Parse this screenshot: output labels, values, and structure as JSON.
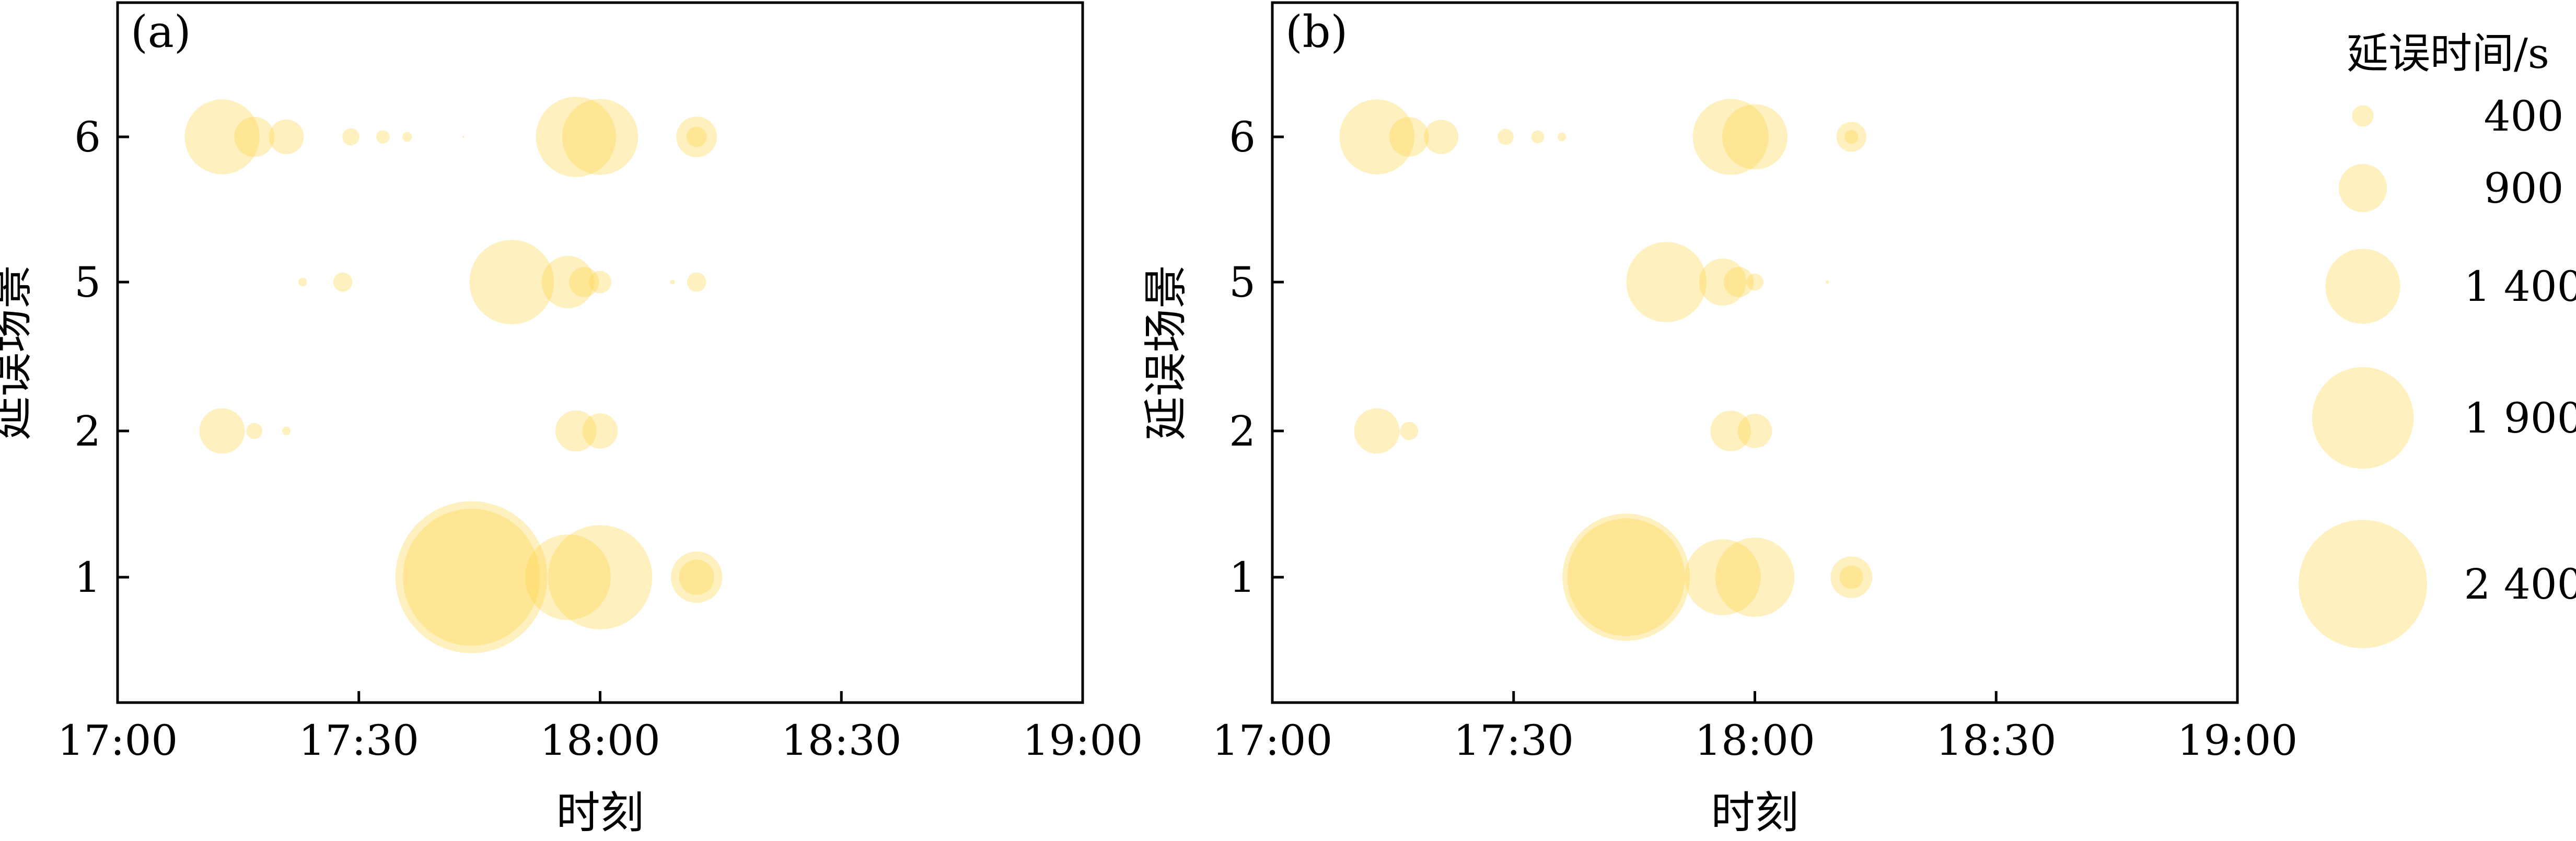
{
  "bubble_color": "#FFD23C",
  "chart_data": [
    {
      "type": "scatter",
      "panel_label": "(a)",
      "xlabel": "时刻",
      "ylabel": "延误场景",
      "xlim": [
        "17:00",
        "19:00"
      ],
      "xticks": [
        "17:00",
        "17:30",
        "18:00",
        "18:30",
        "19:00"
      ],
      "yticks": [
        "1",
        "2",
        "5",
        "6"
      ],
      "points": [
        {
          "time": "17:13",
          "scenario": "6",
          "delay": 1400
        },
        {
          "time": "17:17",
          "scenario": "6",
          "delay": 750
        },
        {
          "time": "17:21",
          "scenario": "6",
          "delay": 650
        },
        {
          "time": "17:29",
          "scenario": "6",
          "delay": 320
        },
        {
          "time": "17:33",
          "scenario": "6",
          "delay": 250
        },
        {
          "time": "17:36",
          "scenario": "6",
          "delay": 180
        },
        {
          "time": "17:43",
          "scenario": "6",
          "delay": 40
        },
        {
          "time": "17:57",
          "scenario": "6",
          "delay": 1500
        },
        {
          "time": "18:00",
          "scenario": "6",
          "delay": 1420
        },
        {
          "time": "18:12",
          "scenario": "6",
          "delay": 760
        },
        {
          "time": "18:12",
          "scenario": "6",
          "delay": 380
        },
        {
          "time": "17:23",
          "scenario": "5",
          "delay": 160
        },
        {
          "time": "17:28",
          "scenario": "5",
          "delay": 360
        },
        {
          "time": "17:49",
          "scenario": "5",
          "delay": 1580
        },
        {
          "time": "17:56",
          "scenario": "5",
          "delay": 980
        },
        {
          "time": "17:58",
          "scenario": "5",
          "delay": 560
        },
        {
          "time": "18:00",
          "scenario": "5",
          "delay": 420
        },
        {
          "time": "18:09",
          "scenario": "5",
          "delay": 90
        },
        {
          "time": "18:12",
          "scenario": "5",
          "delay": 360
        },
        {
          "time": "17:13",
          "scenario": "2",
          "delay": 850
        },
        {
          "time": "17:17",
          "scenario": "2",
          "delay": 300
        },
        {
          "time": "17:21",
          "scenario": "2",
          "delay": 160
        },
        {
          "time": "17:57",
          "scenario": "2",
          "delay": 770
        },
        {
          "time": "18:00",
          "scenario": "2",
          "delay": 660
        },
        {
          "time": "17:44",
          "scenario": "1",
          "delay": 2840
        },
        {
          "time": "17:44",
          "scenario": "1",
          "delay": 2560
        },
        {
          "time": "17:56",
          "scenario": "1",
          "delay": 1600
        },
        {
          "time": "18:00",
          "scenario": "1",
          "delay": 1950
        },
        {
          "time": "18:12",
          "scenario": "1",
          "delay": 960
        },
        {
          "time": "18:12",
          "scenario": "1",
          "delay": 660
        }
      ]
    },
    {
      "type": "scatter",
      "panel_label": "(b)",
      "xlabel": "时刻",
      "ylabel": "延误场景",
      "xlim": [
        "17:00",
        "19:00"
      ],
      "xticks": [
        "17:00",
        "17:30",
        "18:00",
        "18:30",
        "19:00"
      ],
      "yticks": [
        "1",
        "2",
        "5",
        "6"
      ],
      "points": [
        {
          "time": "17:13",
          "scenario": "6",
          "delay": 1400
        },
        {
          "time": "17:17",
          "scenario": "6",
          "delay": 740
        },
        {
          "time": "17:21",
          "scenario": "6",
          "delay": 640
        },
        {
          "time": "17:29",
          "scenario": "6",
          "delay": 300
        },
        {
          "time": "17:33",
          "scenario": "6",
          "delay": 240
        },
        {
          "time": "17:36",
          "scenario": "6",
          "delay": 160
        },
        {
          "time": "17:57",
          "scenario": "6",
          "delay": 1420
        },
        {
          "time": "18:00",
          "scenario": "6",
          "delay": 1220
        },
        {
          "time": "18:12",
          "scenario": "6",
          "delay": 560
        },
        {
          "time": "18:12",
          "scenario": "6",
          "delay": 260
        },
        {
          "time": "17:49",
          "scenario": "5",
          "delay": 1500
        },
        {
          "time": "17:56",
          "scenario": "5",
          "delay": 880
        },
        {
          "time": "17:58",
          "scenario": "5",
          "delay": 560
        },
        {
          "time": "18:00",
          "scenario": "5",
          "delay": 320
        },
        {
          "time": "18:09",
          "scenario": "5",
          "delay": 60
        },
        {
          "time": "17:13",
          "scenario": "2",
          "delay": 850
        },
        {
          "time": "17:17",
          "scenario": "2",
          "delay": 340
        },
        {
          "time": "17:57",
          "scenario": "2",
          "delay": 760
        },
        {
          "time": "18:00",
          "scenario": "2",
          "delay": 640
        },
        {
          "time": "17:44",
          "scenario": "1",
          "delay": 2380
        },
        {
          "time": "17:44",
          "scenario": "1",
          "delay": 2200
        },
        {
          "time": "17:56",
          "scenario": "1",
          "delay": 1420
        },
        {
          "time": "18:00",
          "scenario": "1",
          "delay": 1480
        },
        {
          "time": "18:12",
          "scenario": "1",
          "delay": 780
        },
        {
          "time": "18:12",
          "scenario": "1",
          "delay": 440
        }
      ]
    }
  ],
  "legend": {
    "title": "延误时间/s",
    "entries": [
      {
        "value": 400,
        "label": "400"
      },
      {
        "value": 900,
        "label": "900"
      },
      {
        "value": 1400,
        "label": "1 400"
      },
      {
        "value": 1900,
        "label": "1 900"
      },
      {
        "value": 2400,
        "label": "2 400"
      }
    ]
  }
}
